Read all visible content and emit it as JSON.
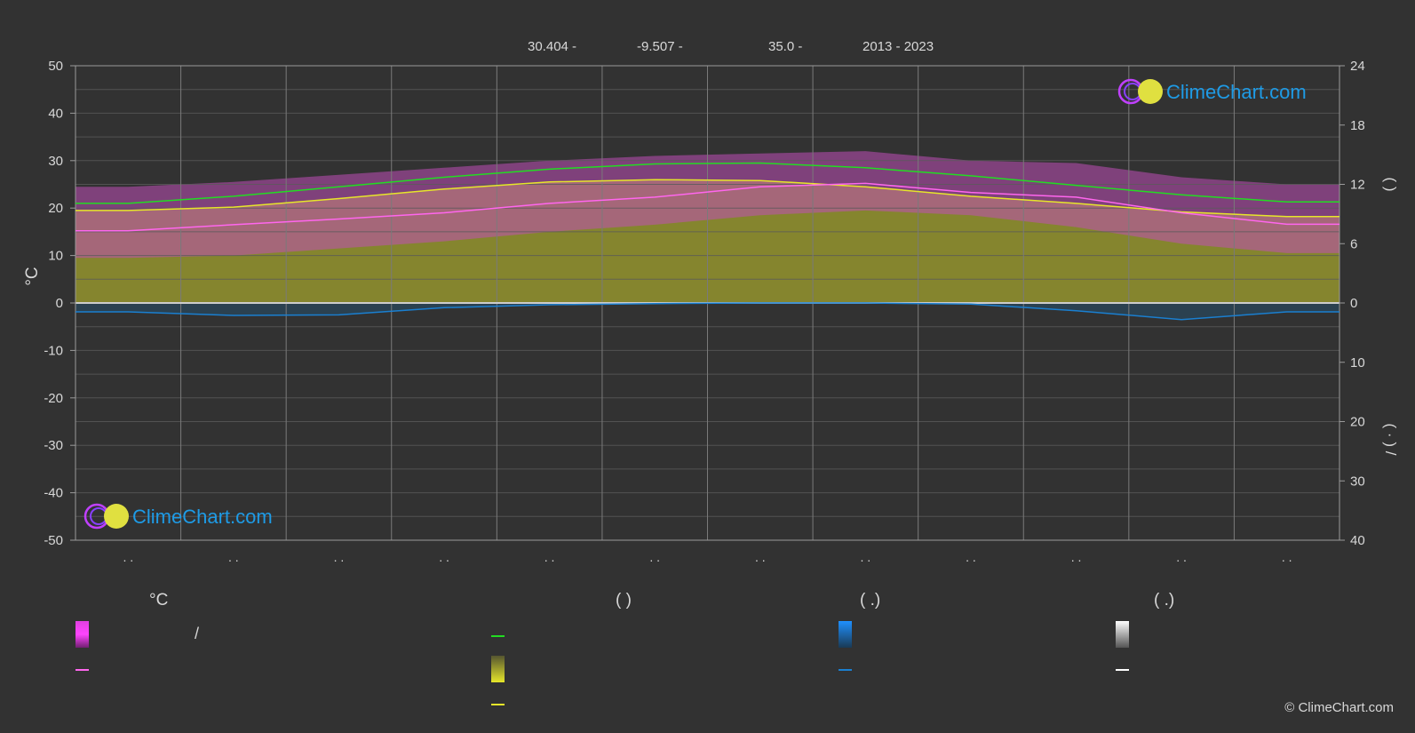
{
  "header": {
    "items": [
      "30.404 -",
      "-9.507 -",
      "35.0 -",
      "2013 - 2023"
    ]
  },
  "brand": {
    "name": "ClimeChart.com",
    "copyright": "© ClimeChart.com",
    "color_text": "#1e9be6",
    "color_ring": "#c040ff",
    "color_sun": "#e0e040"
  },
  "legend": {
    "col1_head": "°C",
    "col2_head": "(            )",
    "col3_head": "(    .)",
    "col4_head": "(    .)",
    "slash": "/"
  },
  "chart_data": {
    "type": "area",
    "months": 12,
    "x_tick_labels": [
      ". .",
      ". .",
      ". .",
      ". .",
      ". .",
      ". .",
      ". .",
      ". .",
      ". .",
      ". .",
      ". .",
      ". ."
    ],
    "y_left": {
      "label": "°C",
      "min": -50,
      "max": 50,
      "ticks": [
        50,
        40,
        30,
        20,
        10,
        0,
        -10,
        -20,
        -30,
        -40,
        -50
      ]
    },
    "y_right_top": {
      "label": "(    )",
      "min": 0,
      "max": 24,
      "ticks": [
        24,
        18,
        12,
        6,
        0
      ]
    },
    "y_right_bottom": {
      "label": "(  ·  )   /",
      "min": 0,
      "max": 40,
      "ticks": [
        0,
        10,
        20,
        30,
        40
      ]
    },
    "grid": true,
    "series": [
      {
        "key": "daylight",
        "color": "#22dd22",
        "values": [
          21.0,
          22.5,
          24.5,
          26.5,
          28.2,
          29.3,
          29.5,
          28.5,
          26.8,
          24.8,
          22.8,
          21.3
        ]
      },
      {
        "key": "sunshine",
        "color": "#e6e62a",
        "values": [
          19.5,
          20.2,
          22.0,
          24.0,
          25.5,
          26.0,
          25.8,
          24.5,
          22.5,
          21.0,
          19.2,
          18.2
        ]
      },
      {
        "key": "temp_mean",
        "color": "#ff66ee",
        "values": [
          15.2,
          16.5,
          17.7,
          19.0,
          21.0,
          22.3,
          24.5,
          25.2,
          23.3,
          22.3,
          19.0,
          16.6
        ]
      },
      {
        "key": "precipitation",
        "color": "#1a7fd0",
        "values": [
          1.5,
          2.1,
          2.0,
          0.8,
          0.3,
          0.1,
          0.0,
          0.0,
          0.2,
          1.3,
          2.8,
          1.5
        ]
      }
    ],
    "temp_band_max": [
      24.5,
      25.5,
      27.0,
      28.5,
      30.0,
      31.0,
      31.5,
      32.0,
      30.0,
      29.5,
      26.5,
      25.0
    ],
    "temp_band_min": [
      9.5,
      10.0,
      11.5,
      13.0,
      15.0,
      16.5,
      18.5,
      19.5,
      18.5,
      16.0,
      12.5,
      10.5
    ],
    "colors": {
      "background": "#323232",
      "grid": "#5a5a5a",
      "month_grid": "#7a7a7a",
      "sunshine_fill": "#8a8a2e",
      "temp_band": "#c04fb8",
      "rain_bars": "#24506e",
      "zero_line": "#cccccc"
    }
  }
}
